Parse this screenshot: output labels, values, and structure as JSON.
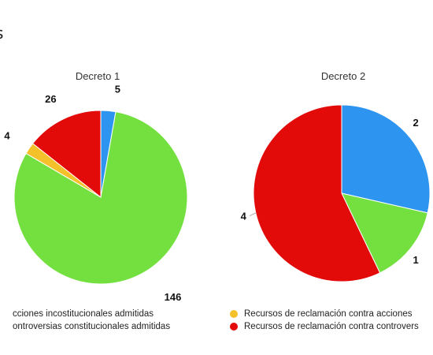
{
  "page": {
    "title_fragment": "s"
  },
  "colors": {
    "blue": "#2d94f0",
    "green": "#74e040",
    "yellow": "#f5c12a",
    "red": "#e30a0a"
  },
  "legend": {
    "left": [
      {
        "label": "cciones incostitucionales admitidas",
        "color": "#74e040"
      },
      {
        "label": "ontroversias constitucionales admitidas",
        "color": "#e30a0a"
      }
    ],
    "right": [
      {
        "label": "Recursos de reclamación contra acciones",
        "color": "#f5c12a"
      },
      {
        "label": "Recursos de reclamación contra controvers",
        "color": "#e30a0a"
      }
    ]
  },
  "chart_data": [
    {
      "type": "pie",
      "title": "Decreto 1",
      "series": [
        {
          "value": 5,
          "label": "5",
          "color": "#2d94f0"
        },
        {
          "value": 146,
          "label": "146",
          "color": "#74e040"
        },
        {
          "value": 4,
          "label": "4",
          "color": "#f5c12a"
        },
        {
          "value": 26,
          "label": "26",
          "color": "#e30a0a"
        }
      ]
    },
    {
      "type": "pie",
      "title": "Decreto 2",
      "series": [
        {
          "value": 2,
          "label": "2",
          "color": "#2d94f0"
        },
        {
          "value": 1,
          "label": "1",
          "color": "#74e040"
        },
        {
          "value": 4,
          "label": "4",
          "color": "#e30a0a"
        }
      ]
    }
  ]
}
